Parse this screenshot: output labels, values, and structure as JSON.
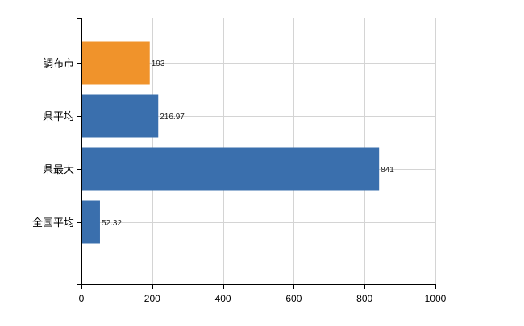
{
  "chart_data": {
    "type": "bar",
    "orientation": "horizontal",
    "categories": [
      "調布市",
      "県平均",
      "県最大",
      "全国平均"
    ],
    "values": [
      193,
      216.97,
      841,
      52.32
    ],
    "value_labels": [
      "193",
      "216.97",
      "841",
      "52.32"
    ],
    "bar_colors": [
      "#f0932b",
      "#3a6fad",
      "#3a6fad",
      "#3a6fad"
    ],
    "xlim": [
      0,
      1000
    ],
    "x_ticks": [
      0,
      200,
      400,
      600,
      800,
      1000
    ],
    "x_tick_labels": [
      "0",
      "200",
      "400",
      "600",
      "800",
      "1000"
    ],
    "grid": true,
    "legend": "none",
    "title": "",
    "xlabel": "",
    "ylabel": ""
  }
}
